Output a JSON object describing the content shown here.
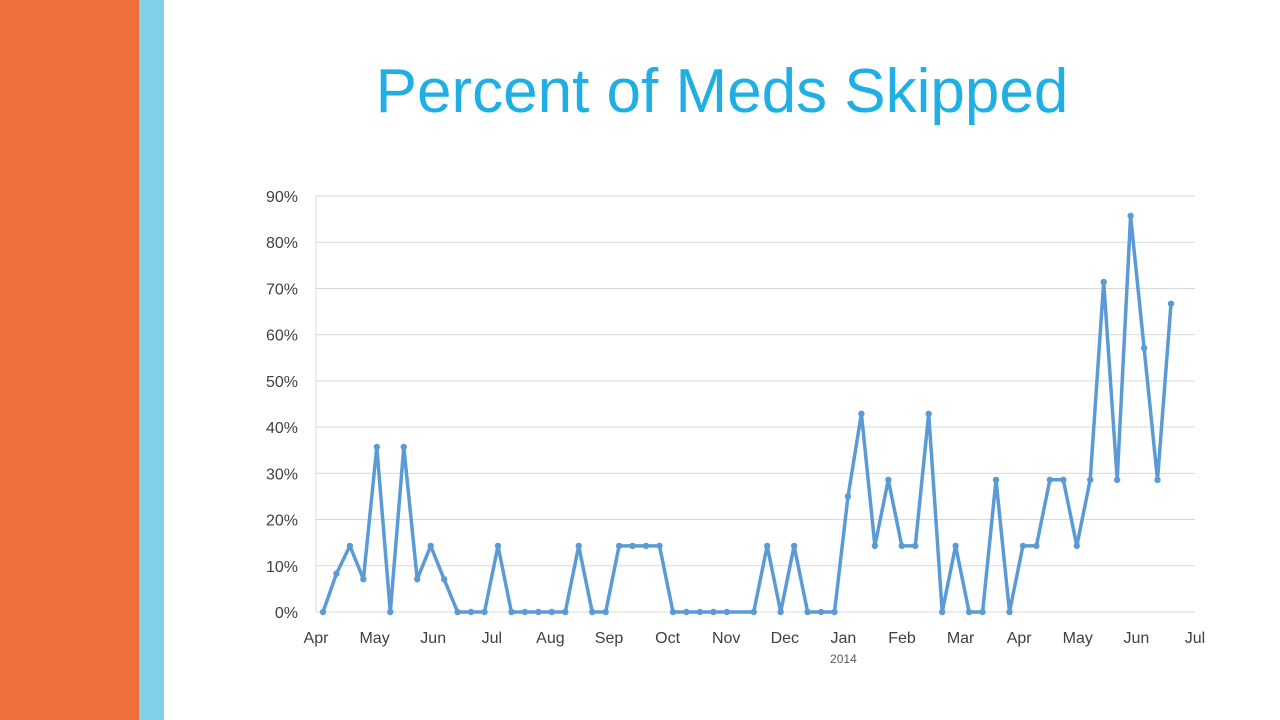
{
  "theme": {
    "orange": "#F06E3C",
    "light_blue": "#7FD2E8",
    "title_color": "#1FAFE4",
    "line_color": "#5B9BD5",
    "grid_color": "#D9D9D9"
  },
  "slide": {
    "title": "Percent of Meds Skipped"
  },
  "chart_data": {
    "type": "line",
    "title": "Percent of Meds Skipped",
    "xlabel": "2014",
    "ylabel": "",
    "ylim": [
      0,
      90
    ],
    "y_ticks": [
      "0%",
      "10%",
      "20%",
      "30%",
      "40%",
      "50%",
      "60%",
      "70%",
      "80%",
      "90%"
    ],
    "x_ticks": [
      "Apr",
      "May",
      "Jun",
      "Jul",
      "Aug",
      "Sep",
      "Oct",
      "Nov",
      "Dec",
      "Jan",
      "Feb",
      "Mar",
      "Apr",
      "May",
      "Jun",
      "Jul"
    ],
    "grid": true,
    "legend": "none",
    "markers": true,
    "series": [
      {
        "values": [
          0,
          8.3,
          14.3,
          7.1,
          35.7,
          0,
          35.7,
          7.1,
          14.3,
          7.1,
          0,
          0,
          0,
          14.3,
          0,
          0,
          0,
          0,
          0,
          14.3,
          0,
          0,
          14.3,
          14.3,
          14.3,
          14.3,
          0,
          0,
          0,
          0,
          0,
          null,
          0,
          14.3,
          0,
          14.3,
          0,
          0,
          0,
          25,
          42.9,
          14.3,
          28.6,
          14.3,
          14.3,
          42.9,
          0,
          14.3,
          0,
          0,
          28.6,
          0,
          14.3,
          14.3,
          28.6,
          28.6,
          14.3,
          28.6,
          71.4,
          28.6,
          85.7,
          57.1,
          28.6,
          66.7
        ]
      }
    ]
  }
}
